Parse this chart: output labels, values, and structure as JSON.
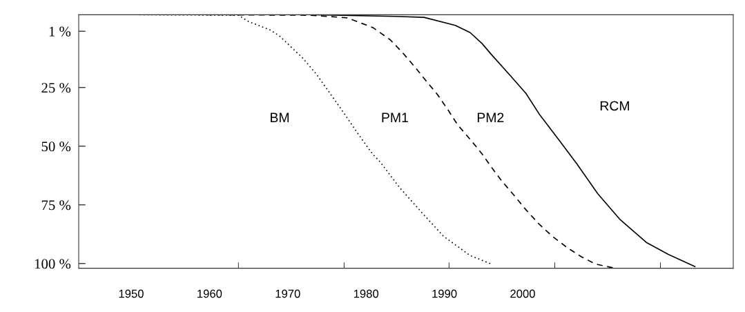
{
  "chart_data": {
    "type": "line",
    "xlim": [
      1943.3,
      2026.9
    ],
    "ylim": [
      102,
      -6
    ],
    "xticks": [
      1950,
      1960,
      1970,
      1980,
      1990,
      2000,
      {
        "value": 1963.7,
        "label": null
      },
      {
        "value": 1977.2,
        "label": null
      },
      {
        "value": 1990.6,
        "label": null
      },
      {
        "value": 2004.1,
        "label": null
      },
      {
        "value": 2017.6,
        "label": null
      }
    ],
    "yticks": [
      {
        "value": 1,
        "label": "1 %"
      },
      {
        "value": 25,
        "label": "25 %"
      },
      {
        "value": 50,
        "label": "50 %"
      },
      {
        "value": 75,
        "label": "75 %"
      },
      {
        "value": 100,
        "label": "100 %"
      }
    ],
    "grid": false,
    "legend": false,
    "marker": "none",
    "series": [
      {
        "color": "#000000",
        "line_style": "dotted",
        "x": [
          1951.1,
          1963.7,
          1965.0,
          1967.7,
          1968.9,
          1971.9,
          1973.7,
          1975.3,
          1976.9,
          1979.2,
          1980.8,
          1981.8,
          1984.3,
          1987.1,
          1989.9,
          1993.3,
          1996.0
        ],
        "values": [
          -6,
          -5.8,
          -3.1,
          0.4,
          2.9,
          12.4,
          19.5,
          27.0,
          34.6,
          45.8,
          53.2,
          56.7,
          67.7,
          78.2,
          88.4,
          96.6,
          100.2
        ]
      },
      {
        "color": "#000000",
        "line_style": "dashed",
        "x": [
          1959.7,
          1972.9,
          1977.6,
          1980.9,
          1983.1,
          1984.6,
          1986.2,
          1987.7,
          1989.1,
          1990.5,
          1991.7,
          1993.3,
          1994.8,
          1996.0,
          1997.4,
          1999.0,
          2000.4,
          2002.1,
          2003.8,
          2005.6,
          2007.5,
          2009.3,
          2011.5
        ],
        "values": [
          -6,
          -5.8,
          -4.7,
          -0.5,
          4.7,
          9.9,
          16.1,
          22.3,
          27.9,
          34.7,
          40.9,
          47.1,
          53.2,
          58.9,
          65.1,
          71.3,
          77.0,
          83.2,
          88.4,
          93.0,
          97.1,
          100.2,
          101.8
        ]
      },
      {
        "color": "#000000",
        "line_style": "solid",
        "x": [
          1973.4,
          1983.7,
          1987.4,
          1991.4,
          1993.3,
          1994.8,
          1996.0,
          1998.5,
          2000.4,
          2002.2,
          2004.7,
          2006.9,
          2009.6,
          2012.4,
          2015.8,
          2018.6,
          2022.0
        ],
        "values": [
          -6,
          -5.3,
          -4.9,
          -1.5,
          1.6,
          6.2,
          10.9,
          20.2,
          27.4,
          36.7,
          47.6,
          57.4,
          70.3,
          81.1,
          91.0,
          96.1,
          101.3
        ]
      }
    ],
    "annotations": [
      "BM",
      "PM1",
      "PM2",
      "RCM"
    ]
  }
}
